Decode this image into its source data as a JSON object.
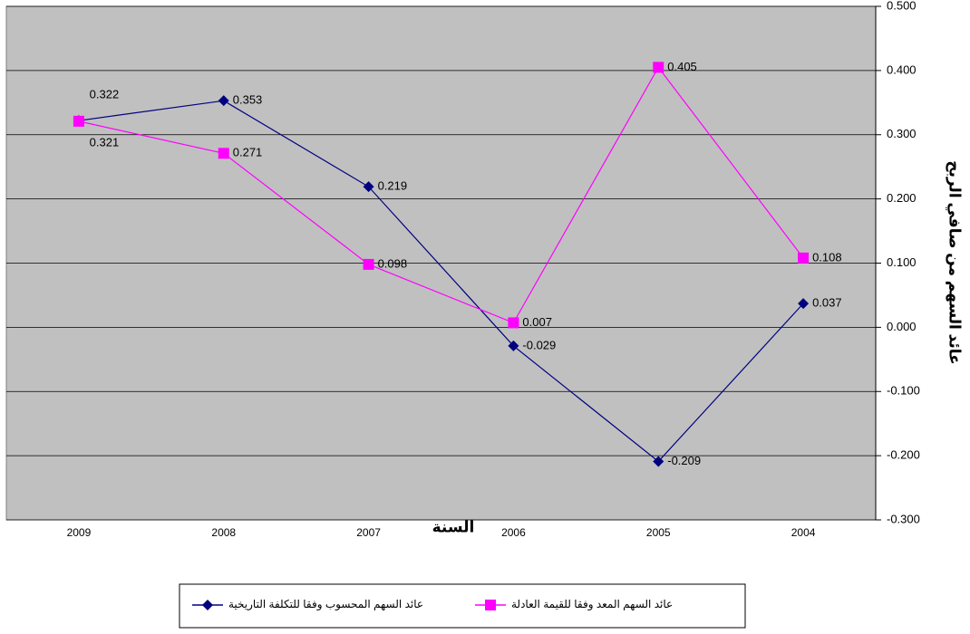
{
  "chart_data": {
    "type": "line",
    "x_axis_title": "السنة",
    "y_axis_title": "عائد السهم من صافي الربح",
    "categories": [
      "2009",
      "2008",
      "2007",
      "2006",
      "2005",
      "2004"
    ],
    "series": [
      {
        "name": "عائد السهم المحسوب وفقا للتكلفة التاريخية",
        "color": "#000080",
        "marker": "diamond",
        "values": [
          0.322,
          0.353,
          0.219,
          -0.029,
          -0.209,
          0.037
        ]
      },
      {
        "name": "عائد السهم المعد وفقا للقيمة العادلة",
        "color": "#ff00ff",
        "marker": "square",
        "values": [
          0.321,
          0.271,
          0.098,
          0.007,
          0.405,
          0.108
        ]
      }
    ],
    "ylim": [
      -0.3,
      0.5
    ],
    "yticks": [
      {
        "value": -0.3,
        "label": "-0.300"
      },
      {
        "value": -0.2,
        "label": "-0.200"
      },
      {
        "value": -0.1,
        "label": "-0.100"
      },
      {
        "value": 0,
        "label": "0.000"
      },
      {
        "value": 0.1,
        "label": "0.100"
      },
      {
        "value": 0.2,
        "label": "0.200"
      },
      {
        "value": 0.3,
        "label": "0.300"
      },
      {
        "value": 0.4,
        "label": "0.400"
      },
      {
        "value": 0.5,
        "label": "0.500"
      }
    ],
    "y_axis_side": "right",
    "grid": true,
    "plot_background": "#c0c0c0"
  }
}
